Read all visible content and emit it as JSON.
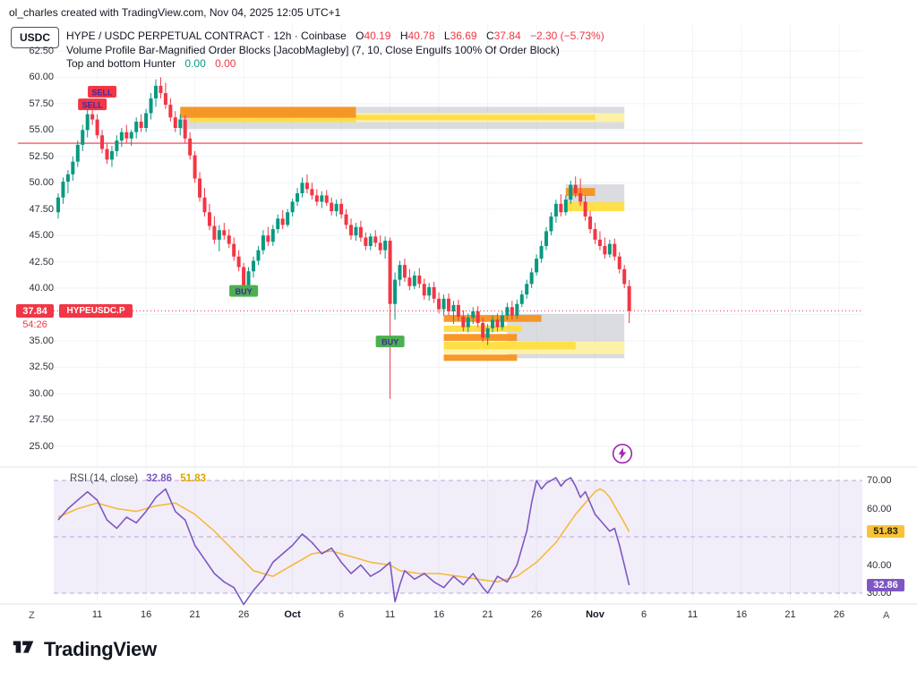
{
  "watermark": "ol_charles created with TradingView.com, Nov 04, 2025 12:05 UTC+1",
  "header": {
    "currency_button": "USDC",
    "symbol_title": "HYPE / USDC PERPETUAL CONTRACT · 12h · Coinbase",
    "ohlc": [
      {
        "k": "O",
        "v": "40.19"
      },
      {
        "k": "H",
        "v": "40.78"
      },
      {
        "k": "L",
        "v": "36.69"
      },
      {
        "k": "C",
        "v": "37.84"
      }
    ],
    "change": "−2.30 (−5.73%)",
    "indicator_title": "Volume Profile Bar-Magnified Order Blocks [JacobMagleby] (7, 10, Close Engulfs 100% Of Order Block)",
    "hunter_title": "Top and bottom Hunter",
    "hunter_green": "0.00",
    "hunter_red": "0.00"
  },
  "price_scale": {
    "symbol_label": "HYPEUSDC.P",
    "price_badge": "37.84",
    "countdown": "54:26"
  },
  "rsi_panel": {
    "legend": "RSI (14, close)",
    "value": "32.86",
    "ma_value": "51.83",
    "value_badge": "32.86",
    "ma_badge": "51.83"
  },
  "footer": {
    "left_edge": "Z",
    "right_edge": "A",
    "logo_text": "TradingView"
  },
  "colors": {
    "up": "#089981",
    "down": "#F23645",
    "line_red": "#F23645",
    "rsi": "#7E57C2",
    "rsi_ma": "#F5B93E",
    "buy_green": "#4CAF50",
    "marker_text": "#4527A0",
    "block_orange": "#F7921E",
    "block_yellow": "#FFDD40",
    "block_pale": "#FFF1A3",
    "block_gray": "#979BA5"
  },
  "chart_data": {
    "type": "candlestick",
    "title": "HYPE / USDC PERPETUAL CONTRACT · 12h · Coinbase",
    "ohlc_current": {
      "o": 40.19,
      "h": 40.78,
      "l": 36.69,
      "c": 37.84,
      "change": -2.3,
      "change_pct": -5.73
    },
    "price_range_visible": [
      23.2,
      65.0
    ],
    "price_axis_ticks": [
      62.5,
      60,
      57.5,
      55,
      52.5,
      50,
      47.5,
      45,
      42.5,
      40,
      37.5,
      35,
      32.5,
      30,
      27.5,
      25
    ],
    "hidden_tick": 37.5,
    "x_ticks": [
      {
        "i": 8,
        "label": "11"
      },
      {
        "i": 18,
        "label": "16"
      },
      {
        "i": 28,
        "label": "21"
      },
      {
        "i": 38,
        "label": "26"
      },
      {
        "i": 48,
        "label": "Oct",
        "bold": true
      },
      {
        "i": 58,
        "label": "6"
      },
      {
        "i": 68,
        "label": "11"
      },
      {
        "i": 78,
        "label": "16"
      },
      {
        "i": 88,
        "label": "21"
      },
      {
        "i": 98,
        "label": "26"
      },
      {
        "i": 110,
        "label": "Nov",
        "bold": true
      },
      {
        "i": 120,
        "label": "6"
      },
      {
        "i": 130,
        "label": "11"
      },
      {
        "i": 140,
        "label": "16"
      },
      {
        "i": 150,
        "label": "21"
      },
      {
        "i": 160,
        "label": "26"
      }
    ],
    "candles": [
      [
        47.2,
        49,
        46.6,
        48.6
      ],
      [
        48.6,
        50.5,
        48,
        50.1
      ],
      [
        50.1,
        51.2,
        49,
        50.8
      ],
      [
        50.8,
        52.5,
        50.2,
        52
      ],
      [
        52,
        54,
        51.5,
        53.6
      ],
      [
        53.6,
        55.5,
        53,
        55
      ],
      [
        55,
        57,
        54.3,
        56.5
      ],
      [
        56.5,
        57.8,
        55.5,
        56
      ],
      [
        56,
        56.5,
        54.2,
        54.5
      ],
      [
        54.5,
        55,
        52.8,
        53.2
      ],
      [
        53.2,
        53.8,
        51.8,
        52.2
      ],
      [
        52.2,
        53.5,
        51.5,
        53
      ],
      [
        53,
        54.5,
        52.5,
        54
      ],
      [
        54,
        55.2,
        53.4,
        54.8
      ],
      [
        54.8,
        55.5,
        53.8,
        54.2
      ],
      [
        54.2,
        55,
        53.5,
        54.8
      ],
      [
        54.8,
        56.2,
        54.2,
        55.8
      ],
      [
        55.8,
        56.5,
        54.8,
        55.2
      ],
      [
        55.2,
        57,
        54.8,
        56.6
      ],
      [
        56.6,
        58.5,
        56,
        58
      ],
      [
        58,
        59.8,
        57.2,
        59.2
      ],
      [
        59.2,
        60,
        58,
        58.5
      ],
      [
        58.5,
        59.5,
        57,
        57.4
      ],
      [
        57.4,
        58,
        55.8,
        56.2
      ],
      [
        56.2,
        56.8,
        54.8,
        55.2
      ],
      [
        55.2,
        56.5,
        54.5,
        56
      ],
      [
        56,
        56.4,
        53.8,
        54.2
      ],
      [
        54.2,
        54.8,
        52.2,
        52.6
      ],
      [
        52.6,
        53,
        50,
        50.4
      ],
      [
        50.4,
        51,
        48.2,
        48.6
      ],
      [
        48.6,
        49.5,
        46.8,
        47.2
      ],
      [
        47.2,
        48,
        45.5,
        45.9
      ],
      [
        45.9,
        46.8,
        44.2,
        44.6
      ],
      [
        44.6,
        46,
        43.5,
        45.5
      ],
      [
        45.5,
        46.2,
        44.6,
        45
      ],
      [
        45,
        45.6,
        43.8,
        44.2
      ],
      [
        44.2,
        44.8,
        42.6,
        43
      ],
      [
        43,
        43.6,
        41.6,
        42
      ],
      [
        42,
        42.4,
        39.6,
        40
      ],
      [
        40,
        42,
        39.4,
        41.6
      ],
      [
        41.6,
        43,
        41,
        42.6
      ],
      [
        42.6,
        44,
        42.2,
        43.6
      ],
      [
        43.6,
        45.5,
        43.2,
        45
      ],
      [
        45,
        45.8,
        44,
        44.4
      ],
      [
        44.4,
        46,
        44,
        45.6
      ],
      [
        45.6,
        47,
        45.2,
        46.6
      ],
      [
        46.6,
        47.4,
        45.6,
        46
      ],
      [
        46,
        47.5,
        45.8,
        47.2
      ],
      [
        47.2,
        48.5,
        46.8,
        48.2
      ],
      [
        48.2,
        49.5,
        47.8,
        49
      ],
      [
        49,
        50.5,
        48.6,
        50
      ],
      [
        50,
        50.8,
        49,
        49.4
      ],
      [
        49.4,
        50,
        48.4,
        48.8
      ],
      [
        48.8,
        49.4,
        47.8,
        48.2
      ],
      [
        48.2,
        49.2,
        47.6,
        48.8
      ],
      [
        48.8,
        49.3,
        47.8,
        48.1
      ],
      [
        48.1,
        48.6,
        46.9,
        47.3
      ],
      [
        47.3,
        48.4,
        46.8,
        48
      ],
      [
        48,
        48.5,
        46.6,
        47
      ],
      [
        47,
        47.5,
        45.6,
        46
      ],
      [
        46,
        46.6,
        44.6,
        45
      ],
      [
        45,
        46.2,
        44.5,
        45.8
      ],
      [
        45.8,
        46.4,
        44.4,
        44.8
      ],
      [
        44.8,
        45.3,
        43.6,
        44
      ],
      [
        44,
        45.2,
        43.6,
        44.9
      ],
      [
        44.9,
        45.5,
        43.9,
        44.3
      ],
      [
        44.3,
        45,
        43.2,
        43.6
      ],
      [
        43.6,
        44.9,
        42.8,
        44.5
      ],
      [
        44.5,
        44.8,
        29.5,
        38.5
      ],
      [
        38.5,
        41.5,
        37,
        40.8
      ],
      [
        40.8,
        42.6,
        40.2,
        42.2
      ],
      [
        42.2,
        42.8,
        40.6,
        41
      ],
      [
        41,
        41.8,
        39.8,
        40.2
      ],
      [
        40.2,
        41.6,
        39.9,
        41.2
      ],
      [
        41.2,
        41.9,
        40,
        40.4
      ],
      [
        40.4,
        40.9,
        38.9,
        39.3
      ],
      [
        39.3,
        40.5,
        38.8,
        40.1
      ],
      [
        40.1,
        40.6,
        38.6,
        39
      ],
      [
        39,
        39.6,
        37.6,
        38
      ],
      [
        38,
        39.4,
        37.4,
        39
      ],
      [
        39,
        39.5,
        37.4,
        37.8
      ],
      [
        37.8,
        38.8,
        36.6,
        38.4
      ],
      [
        38.4,
        38.9,
        36.9,
        37.3
      ],
      [
        37.3,
        37.9,
        35.9,
        36.3
      ],
      [
        36.3,
        37.6,
        35.8,
        37.2
      ],
      [
        37.2,
        38.2,
        36.6,
        37.8
      ],
      [
        37.8,
        38.3,
        36.3,
        36.7
      ],
      [
        36.7,
        37.2,
        34.9,
        35.3
      ],
      [
        35.3,
        36.6,
        34.6,
        36.2
      ],
      [
        36.2,
        37.4,
        35.8,
        37
      ],
      [
        37,
        37.6,
        35.9,
        36.3
      ],
      [
        36.3,
        37.8,
        36,
        37.4
      ],
      [
        37.4,
        38.6,
        37,
        38.2
      ],
      [
        38.2,
        38.8,
        37,
        37.4
      ],
      [
        37.4,
        38.9,
        37.1,
        38.5
      ],
      [
        38.5,
        39.8,
        38.2,
        39.4
      ],
      [
        39.4,
        40.8,
        39,
        40.4
      ],
      [
        40.4,
        41.9,
        40,
        41.5
      ],
      [
        41.5,
        43.2,
        41.2,
        42.8
      ],
      [
        42.8,
        44.5,
        42.4,
        44
      ],
      [
        44,
        45.8,
        43.6,
        45.4
      ],
      [
        45.4,
        47.2,
        45,
        46.8
      ],
      [
        46.8,
        48.4,
        46.2,
        48
      ],
      [
        48,
        48.9,
        46.8,
        47.2
      ],
      [
        47.2,
        48.8,
        46.9,
        48.4
      ],
      [
        48.4,
        50.2,
        48,
        49.8
      ],
      [
        49.8,
        50.6,
        48.6,
        49
      ],
      [
        49,
        50.4,
        47.8,
        48.2
      ],
      [
        48.2,
        48.8,
        46.4,
        46.8
      ],
      [
        46.8,
        47.3,
        45.2,
        45.6
      ],
      [
        45.6,
        46.2,
        44.2,
        44.6
      ],
      [
        44.6,
        45.4,
        43.6,
        44
      ],
      [
        44,
        44.8,
        42.8,
        43.2
      ],
      [
        43.2,
        44.6,
        42.9,
        44.2
      ],
      [
        44.2,
        44.7,
        42.6,
        43
      ],
      [
        43,
        43.4,
        41.4,
        41.8
      ],
      [
        41.8,
        42.2,
        40,
        40.4
      ],
      [
        40.19,
        40.78,
        36.69,
        37.84
      ]
    ],
    "markers": [
      {
        "type": "sell",
        "i": 7,
        "price": 57.4
      },
      {
        "type": "sell",
        "i": 9,
        "price": 58.6
      },
      {
        "type": "buy",
        "i": 38,
        "price": 39.7
      },
      {
        "type": "buy",
        "i": 68,
        "price": 34.9
      }
    ],
    "hlines": [
      {
        "price": 53.75,
        "style": "solid"
      },
      {
        "price": 37.84,
        "style": "dotted"
      }
    ],
    "order_blocks": [
      {
        "i1": 25,
        "i2": 116,
        "p1": 57.2,
        "p2": 55.1,
        "c": "gray"
      },
      {
        "i1": 25,
        "i2": 61,
        "p1": 57.2,
        "p2": 56.15,
        "c": "orange"
      },
      {
        "i1": 27,
        "i2": 61,
        "p1": 56.15,
        "p2": 55.75,
        "c": "yellow"
      },
      {
        "i1": 61,
        "i2": 116,
        "p1": 56.6,
        "p2": 55.75,
        "c": "pale"
      },
      {
        "i1": 61,
        "i2": 110,
        "p1": 56.45,
        "p2": 55.95,
        "c": "yellow"
      },
      {
        "i1": 104,
        "i2": 116,
        "p1": 49.85,
        "p2": 48.0,
        "c": "gray"
      },
      {
        "i1": 104,
        "i2": 110,
        "p1": 49.5,
        "p2": 48.75,
        "c": "orange"
      },
      {
        "i1": 104,
        "i2": 116,
        "p1": 48.15,
        "p2": 47.3,
        "c": "yellow"
      },
      {
        "i1": 92,
        "i2": 116,
        "p1": 37.55,
        "p2": 33.35,
        "c": "gray"
      },
      {
        "i1": 79,
        "i2": 99,
        "p1": 37.45,
        "p2": 36.8,
        "c": "orange"
      },
      {
        "i1": 79,
        "i2": 95,
        "p1": 36.45,
        "p2": 35.85,
        "c": "yellow"
      },
      {
        "i1": 79,
        "i2": 94,
        "p1": 35.65,
        "p2": 35.0,
        "c": "orange"
      },
      {
        "i1": 79,
        "i2": 116,
        "p1": 34.95,
        "p2": 33.75,
        "c": "pale"
      },
      {
        "i1": 79,
        "i2": 106,
        "p1": 34.9,
        "p2": 34.2,
        "c": "yellow"
      },
      {
        "i1": 79,
        "i2": 94,
        "p1": 33.7,
        "p2": 33.1,
        "c": "orange"
      }
    ],
    "rsi": {
      "band": [
        30,
        70
      ],
      "levels": [
        70,
        50,
        30
      ],
      "axis_ticks": [
        70,
        60,
        40,
        30
      ],
      "current": 32.86,
      "ma_current": 51.83,
      "series": [
        [
          0,
          56
        ],
        [
          2,
          60
        ],
        [
          4,
          63
        ],
        [
          6,
          66
        ],
        [
          8,
          63
        ],
        [
          10,
          56
        ],
        [
          12,
          53
        ],
        [
          14,
          57
        ],
        [
          16,
          55
        ],
        [
          18,
          59
        ],
        [
          20,
          64
        ],
        [
          22,
          67
        ],
        [
          24,
          59
        ],
        [
          26,
          56
        ],
        [
          28,
          47
        ],
        [
          30,
          42
        ],
        [
          32,
          37
        ],
        [
          34,
          34
        ],
        [
          36,
          32
        ],
        [
          38,
          26
        ],
        [
          40,
          31
        ],
        [
          42,
          35
        ],
        [
          44,
          41
        ],
        [
          46,
          44
        ],
        [
          48,
          47
        ],
        [
          50,
          51
        ],
        [
          52,
          48
        ],
        [
          54,
          44
        ],
        [
          56,
          46
        ],
        [
          58,
          41
        ],
        [
          60,
          37
        ],
        [
          62,
          40
        ],
        [
          64,
          36
        ],
        [
          66,
          38
        ],
        [
          68,
          41
        ],
        [
          69,
          27
        ],
        [
          70,
          33
        ],
        [
          71,
          38
        ],
        [
          73,
          35
        ],
        [
          75,
          37
        ],
        [
          77,
          34
        ],
        [
          79,
          32
        ],
        [
          81,
          36
        ],
        [
          83,
          33
        ],
        [
          85,
          37
        ],
        [
          87,
          32
        ],
        [
          88,
          30
        ],
        [
          90,
          36
        ],
        [
          92,
          34
        ],
        [
          94,
          40
        ],
        [
          96,
          52
        ],
        [
          97,
          62
        ],
        [
          98,
          70
        ],
        [
          99,
          67
        ],
        [
          100,
          69
        ],
        [
          102,
          71
        ],
        [
          103,
          68
        ],
        [
          104,
          70
        ],
        [
          105,
          71
        ],
        [
          106,
          68
        ],
        [
          107,
          64
        ],
        [
          108,
          66
        ],
        [
          109,
          62
        ],
        [
          110,
          58
        ],
        [
          111,
          56
        ],
        [
          112,
          54
        ],
        [
          113,
          52
        ],
        [
          114,
          53
        ],
        [
          115,
          47
        ],
        [
          116,
          40
        ],
        [
          117,
          32.86
        ]
      ],
      "ma": [
        [
          0,
          57
        ],
        [
          4,
          60
        ],
        [
          8,
          62
        ],
        [
          12,
          60
        ],
        [
          16,
          59
        ],
        [
          20,
          61
        ],
        [
          24,
          62
        ],
        [
          28,
          58
        ],
        [
          32,
          52
        ],
        [
          36,
          45
        ],
        [
          40,
          38
        ],
        [
          44,
          36
        ],
        [
          48,
          40
        ],
        [
          52,
          44
        ],
        [
          56,
          45
        ],
        [
          60,
          43
        ],
        [
          64,
          41
        ],
        [
          68,
          40
        ],
        [
          70,
          38
        ],
        [
          74,
          37
        ],
        [
          78,
          37
        ],
        [
          82,
          36
        ],
        [
          86,
          35
        ],
        [
          90,
          34
        ],
        [
          94,
          36
        ],
        [
          98,
          41
        ],
        [
          102,
          48
        ],
        [
          104,
          53
        ],
        [
          106,
          58
        ],
        [
          108,
          62
        ],
        [
          110,
          66
        ],
        [
          111,
          67
        ],
        [
          112,
          66
        ],
        [
          113,
          64
        ],
        [
          114,
          61
        ],
        [
          115,
          58
        ],
        [
          116,
          55
        ],
        [
          117,
          51.83
        ]
      ]
    }
  }
}
